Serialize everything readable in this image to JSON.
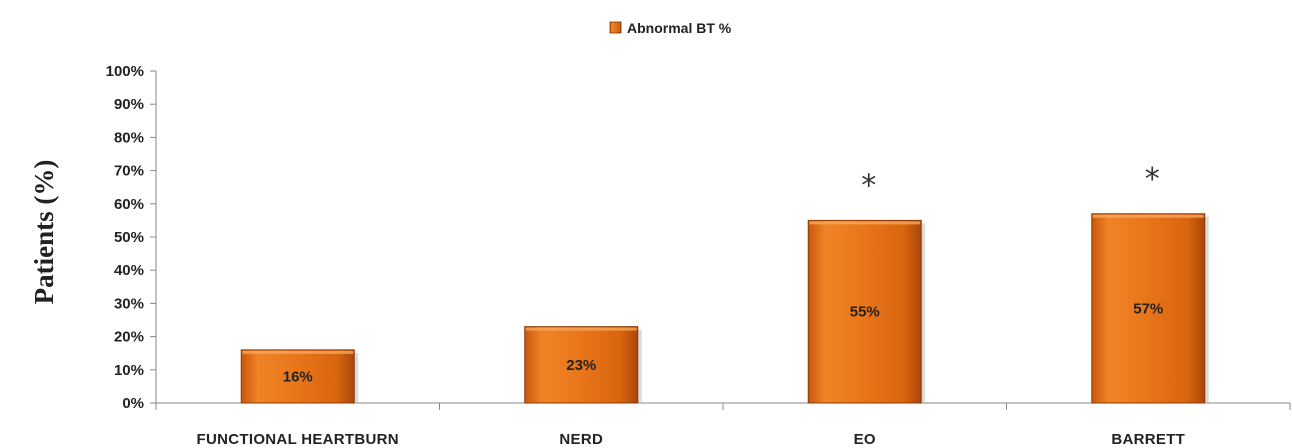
{
  "chart_data": {
    "type": "bar",
    "title": "",
    "xlabel": "",
    "ylabel": "Patients (%)",
    "ylim": [
      0,
      100
    ],
    "yticks": [
      "0%",
      "10%",
      "20%",
      "30%",
      "40%",
      "50%",
      "60%",
      "70%",
      "80%",
      "90%",
      "100%"
    ],
    "categories": [
      "FUNCTIONAL HEARTBURN",
      "NERD",
      "EO",
      "BARRETT"
    ],
    "series": [
      {
        "name": "Abnormal BT %",
        "values": [
          16,
          23,
          55,
          57
        ],
        "labels": [
          "16%",
          "23%",
          "55%",
          "57%"
        ],
        "color": "#e8751a"
      }
    ],
    "annotations": [
      "",
      "",
      "*",
      "*"
    ],
    "legend_position": "top",
    "grid": false
  }
}
